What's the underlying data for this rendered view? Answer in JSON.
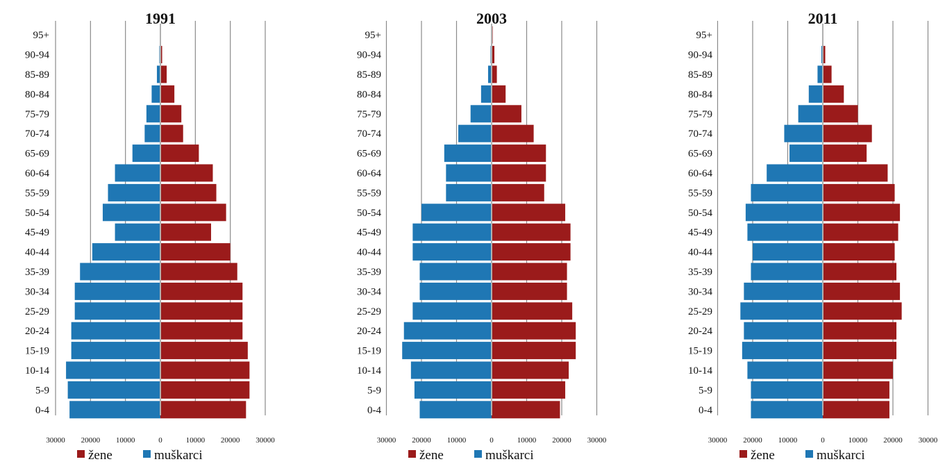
{
  "chart_data": [
    {
      "type": "bar",
      "orientation": "horizontal",
      "layout": "population-pyramid",
      "title": "1991",
      "categories": [
        "0-4",
        "5-9",
        "10-14",
        "15-19",
        "20-24",
        "25-29",
        "30-34",
        "35-39",
        "40-44",
        "45-49",
        "50-54",
        "55-59",
        "60-64",
        "65-69",
        "70-74",
        "75-79",
        "80-84",
        "85-89",
        "90-94",
        "95+"
      ],
      "series": [
        {
          "name": "muškarci",
          "side": "left",
          "color": "#1f77b4",
          "values": [
            26000,
            26500,
            27000,
            25500,
            25500,
            24500,
            24500,
            23000,
            19500,
            13000,
            16500,
            15000,
            13000,
            8000,
            4500,
            4000,
            2500,
            1000,
            300,
            100
          ]
        },
        {
          "name": "žene",
          "side": "right",
          "color": "#9b1b1b",
          "values": [
            24500,
            25500,
            25500,
            25000,
            23500,
            23500,
            23500,
            22000,
            20000,
            14500,
            18800,
            16000,
            15000,
            11000,
            6500,
            6000,
            4000,
            1800,
            500,
            200
          ]
        }
      ],
      "xlim": [
        -30000,
        30000
      ],
      "tick_labels": [
        "30000",
        "20000",
        "10000",
        "0",
        "10000",
        "20000",
        "30000"
      ],
      "grid": true,
      "legend": "bottom"
    },
    {
      "type": "bar",
      "orientation": "horizontal",
      "layout": "population-pyramid",
      "title": "2003",
      "categories": [
        "0-4",
        "5-9",
        "10-14",
        "15-19",
        "20-24",
        "25-29",
        "30-34",
        "35-39",
        "40-44",
        "45-49",
        "50-54",
        "55-59",
        "60-64",
        "65-69",
        "70-74",
        "75-79",
        "80-84",
        "85-89",
        "90-94",
        "95+"
      ],
      "series": [
        {
          "name": "muškarci",
          "side": "left",
          "color": "#1f77b4",
          "values": [
            20500,
            22000,
            23000,
            25500,
            25000,
            22500,
            20500,
            20500,
            22500,
            22500,
            20000,
            13000,
            13000,
            13500,
            9500,
            6000,
            3000,
            1000,
            300,
            100
          ]
        },
        {
          "name": "žene",
          "side": "right",
          "color": "#9b1b1b",
          "values": [
            19500,
            21000,
            22000,
            24000,
            24000,
            23000,
            21500,
            21500,
            22500,
            22500,
            21000,
            15000,
            15500,
            15500,
            12000,
            8500,
            4000,
            1500,
            800,
            300
          ]
        }
      ],
      "xlim": [
        -30000,
        30000
      ],
      "tick_labels": [
        "30000",
        "20000",
        "10000",
        "0",
        "10000",
        "20000",
        "30000"
      ],
      "grid": true,
      "legend": "bottom"
    },
    {
      "type": "bar",
      "orientation": "horizontal",
      "layout": "population-pyramid",
      "title": "2011",
      "categories": [
        "0-4",
        "5-9",
        "10-14",
        "15-19",
        "20-24",
        "25-29",
        "30-34",
        "35-39",
        "40-44",
        "45-49",
        "50-54",
        "55-59",
        "60-64",
        "65-69",
        "70-74",
        "75-79",
        "80-84",
        "85-89",
        "90-94",
        "95+"
      ],
      "series": [
        {
          "name": "muškarci",
          "side": "left",
          "color": "#1f77b4",
          "values": [
            20500,
            20500,
            21500,
            23000,
            22500,
            23500,
            22500,
            20500,
            20000,
            21500,
            22000,
            20500,
            16000,
            9500,
            11000,
            7000,
            4000,
            1500,
            400,
            200
          ]
        },
        {
          "name": "žene",
          "side": "right",
          "color": "#9b1b1b",
          "values": [
            19000,
            19000,
            20000,
            21000,
            21000,
            22500,
            22000,
            21000,
            20500,
            21500,
            22000,
            20500,
            18500,
            12500,
            14000,
            10000,
            6000,
            2500,
            700,
            200
          ]
        }
      ],
      "xlim": [
        -30000,
        30000
      ],
      "tick_labels": [
        "30000",
        "20000",
        "10000",
        "0",
        "10000",
        "20000",
        "30000"
      ],
      "grid": true,
      "legend": "bottom"
    }
  ]
}
